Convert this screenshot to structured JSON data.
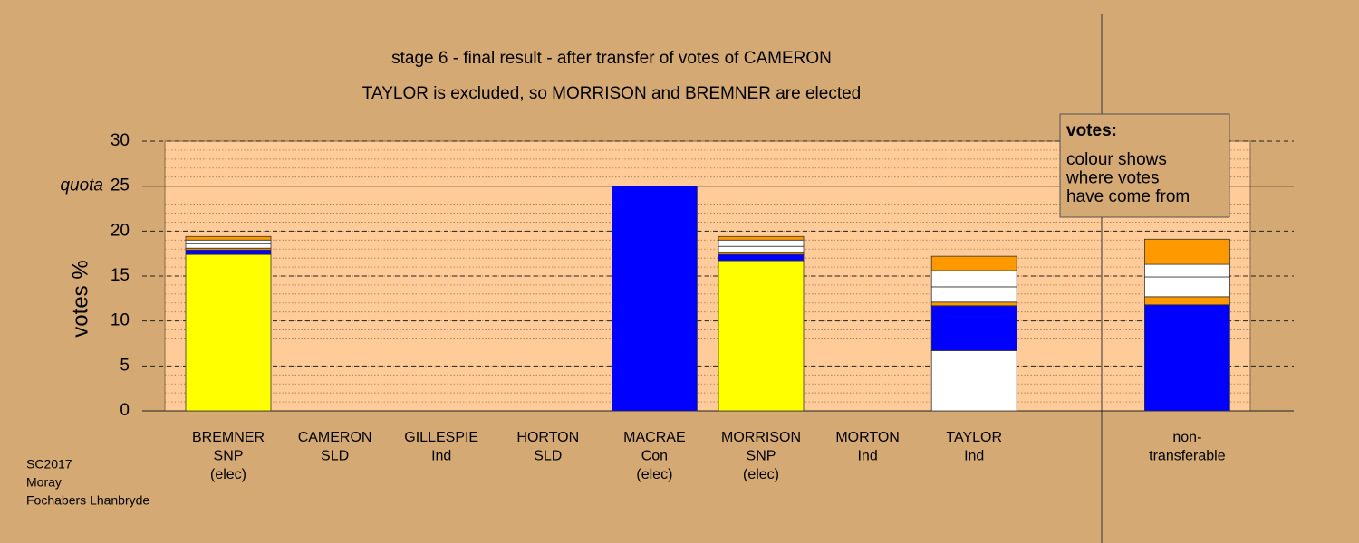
{
  "chart_data": {
    "type": "stacked_bar",
    "title": "stage 6 - final result - after transfer of votes of CAMERON",
    "subtitle": "TAYLOR is excluded, so MORRISON and BREMNER are elected",
    "y_label": "votes %",
    "categories": [
      [
        "BREMNER",
        "SNP",
        "(elec)"
      ],
      [
        "CAMERON",
        "SLD"
      ],
      [
        "GILLESPIE",
        "Ind"
      ],
      [
        "HORTON",
        "SLD"
      ],
      [
        "MACRAE",
        "Con",
        "(elec)"
      ],
      [
        "MORRISON",
        "SNP",
        "(elec)"
      ],
      [
        "MORTON",
        "Ind"
      ],
      [
        "TAYLOR",
        "Ind"
      ],
      null,
      [
        "non-",
        "transferable"
      ]
    ],
    "series": [
      {
        "colors": [
          "#ffff00",
          "#ff9900",
          "#ffffff",
          "#ff9900",
          "#0000ff",
          "#ffff00",
          "#ffffff",
          "#ffffff",
          null,
          "#0000ff"
        ],
        "values": [
          17.4,
          0,
          0,
          0,
          25,
          16.7,
          0,
          6.7,
          null,
          0
        ]
      },
      {
        "color": "#0000ff",
        "values": [
          0.5,
          0,
          0,
          0,
          0,
          0.7,
          0,
          5.0,
          null,
          11.8
        ]
      },
      {
        "color": "#ff9900",
        "values": [
          0.2,
          0,
          0,
          0,
          0,
          0.2,
          0,
          0.4,
          null,
          0.9
        ]
      },
      {
        "color": "#ffffff",
        "values": [
          0.5,
          0,
          0,
          0,
          0,
          0.7,
          0,
          1.7,
          null,
          2.2
        ]
      },
      {
        "color": "#ffffff",
        "values": [
          0.4,
          0,
          0,
          0,
          0,
          0.7,
          0,
          1.8,
          null,
          1.4
        ]
      },
      {
        "color": "#ff9900",
        "values": [
          0.4,
          0,
          0,
          0,
          0,
          0.4,
          0,
          1.6,
          null,
          2.8
        ]
      }
    ],
    "ylim": [
      0,
      30
    ],
    "yticks": [
      0,
      5,
      10,
      15,
      20,
      25,
      30
    ],
    "minor_grid_step": 1,
    "quota": {
      "value": 25,
      "label": "quota"
    },
    "legend": {
      "title": "votes:",
      "lines": [
        "colour shows",
        "where votes",
        "have come from"
      ]
    },
    "footer": [
      "SC2017",
      "Moray",
      "Fochabers Lhanbryde"
    ]
  }
}
